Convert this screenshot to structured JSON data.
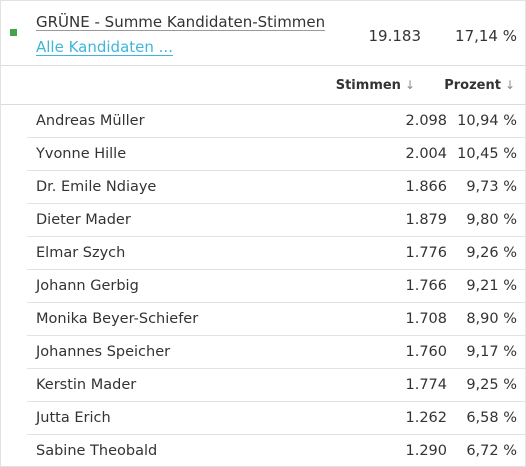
{
  "summary": {
    "title": "GRÜNE - Summe Kandidaten-Stimmen",
    "link_label": "Alle Kandidaten ...",
    "votes": "19.183",
    "percent": "17,14 %",
    "party_color": "#46a34a"
  },
  "header": {
    "votes_label": "Stimmen",
    "percent_label": "Prozent",
    "sort_icon": "arrow-down-icon",
    "sort_glyph": "↓"
  },
  "candidates": [
    {
      "name": "Andreas Müller",
      "votes": "2.098",
      "percent": "10,94 %"
    },
    {
      "name": "Yvonne Hille",
      "votes": "2.004",
      "percent": "10,45 %"
    },
    {
      "name": "Dr. Emile Ndiaye",
      "votes": "1.866",
      "percent": "9,73 %"
    },
    {
      "name": "Dieter Mader",
      "votes": "1.879",
      "percent": "9,80 %"
    },
    {
      "name": "Elmar Szych",
      "votes": "1.776",
      "percent": "9,26 %"
    },
    {
      "name": "Johann Gerbig",
      "votes": "1.766",
      "percent": "9,21 %"
    },
    {
      "name": "Monika Beyer-Schiefer",
      "votes": "1.708",
      "percent": "8,90 %"
    },
    {
      "name": "Johannes Speicher",
      "votes": "1.760",
      "percent": "9,17 %"
    },
    {
      "name": "Kerstin Mader",
      "votes": "1.774",
      "percent": "9,25 %"
    },
    {
      "name": "Jutta Erich",
      "votes": "1.262",
      "percent": "6,58 %"
    },
    {
      "name": "Sabine Theobald",
      "votes": "1.290",
      "percent": "6,72 %"
    }
  ]
}
